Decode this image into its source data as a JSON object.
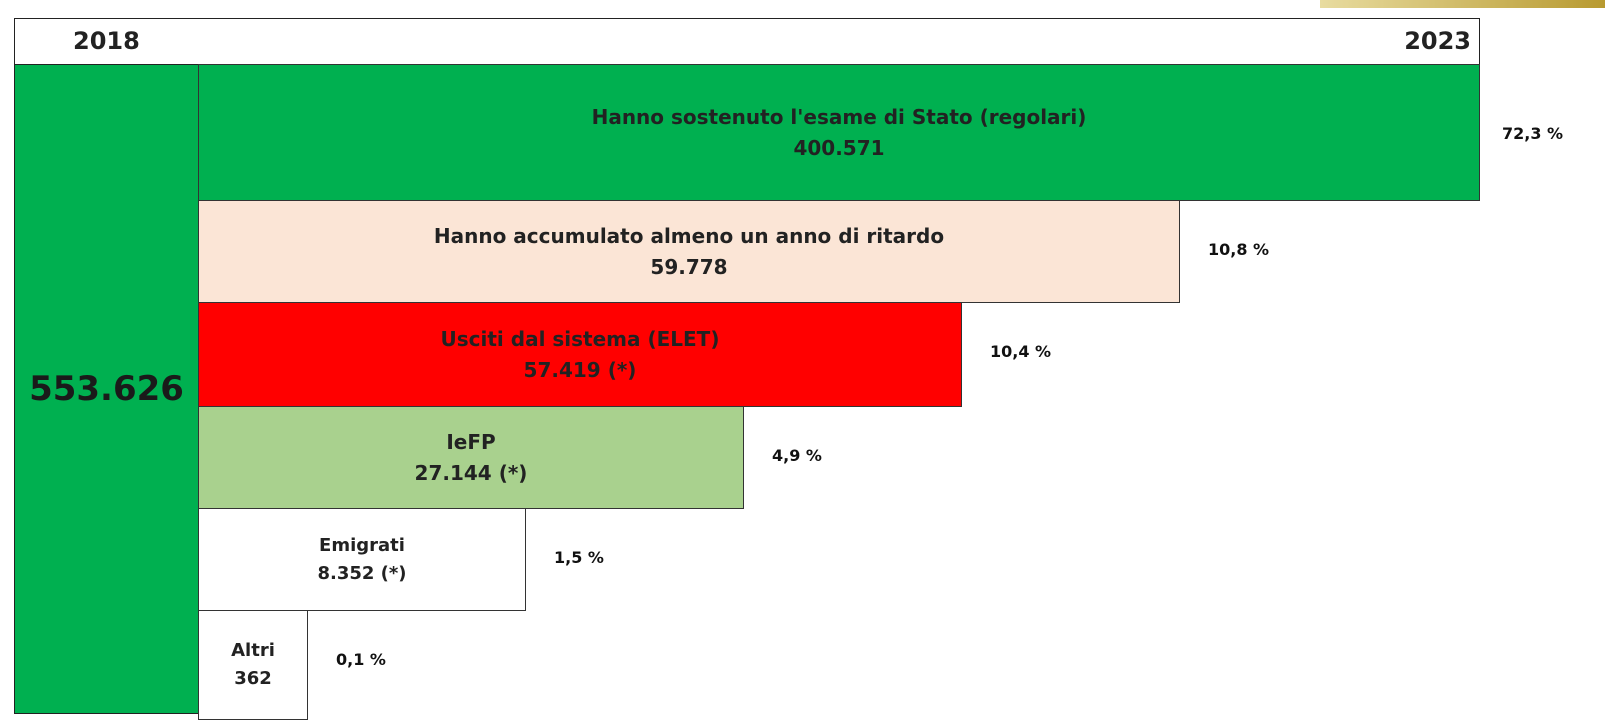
{
  "header": {
    "start_year": "2018",
    "end_year": "2023"
  },
  "total": "553.626",
  "rows": [
    {
      "label": "Hanno sostenuto l'esame di Stato (regolari)",
      "value": "400.571",
      "share": "72,3 %"
    },
    {
      "label": "Hanno accumulato almeno un anno di ritardo",
      "value": "59.778",
      "share": "10,8 %"
    },
    {
      "label": "Usciti dal sistema (ELET)",
      "value": "57.419 (*)",
      "share": "10,4 %"
    },
    {
      "label": "IeFP",
      "value": "27.144 (*)",
      "share": "4,9 %"
    },
    {
      "label": "Emigrati",
      "value": "8.352 (*)",
      "share": "1,5 %"
    },
    {
      "label": "Altri",
      "value": "362",
      "share": "0,1 %"
    }
  ]
}
